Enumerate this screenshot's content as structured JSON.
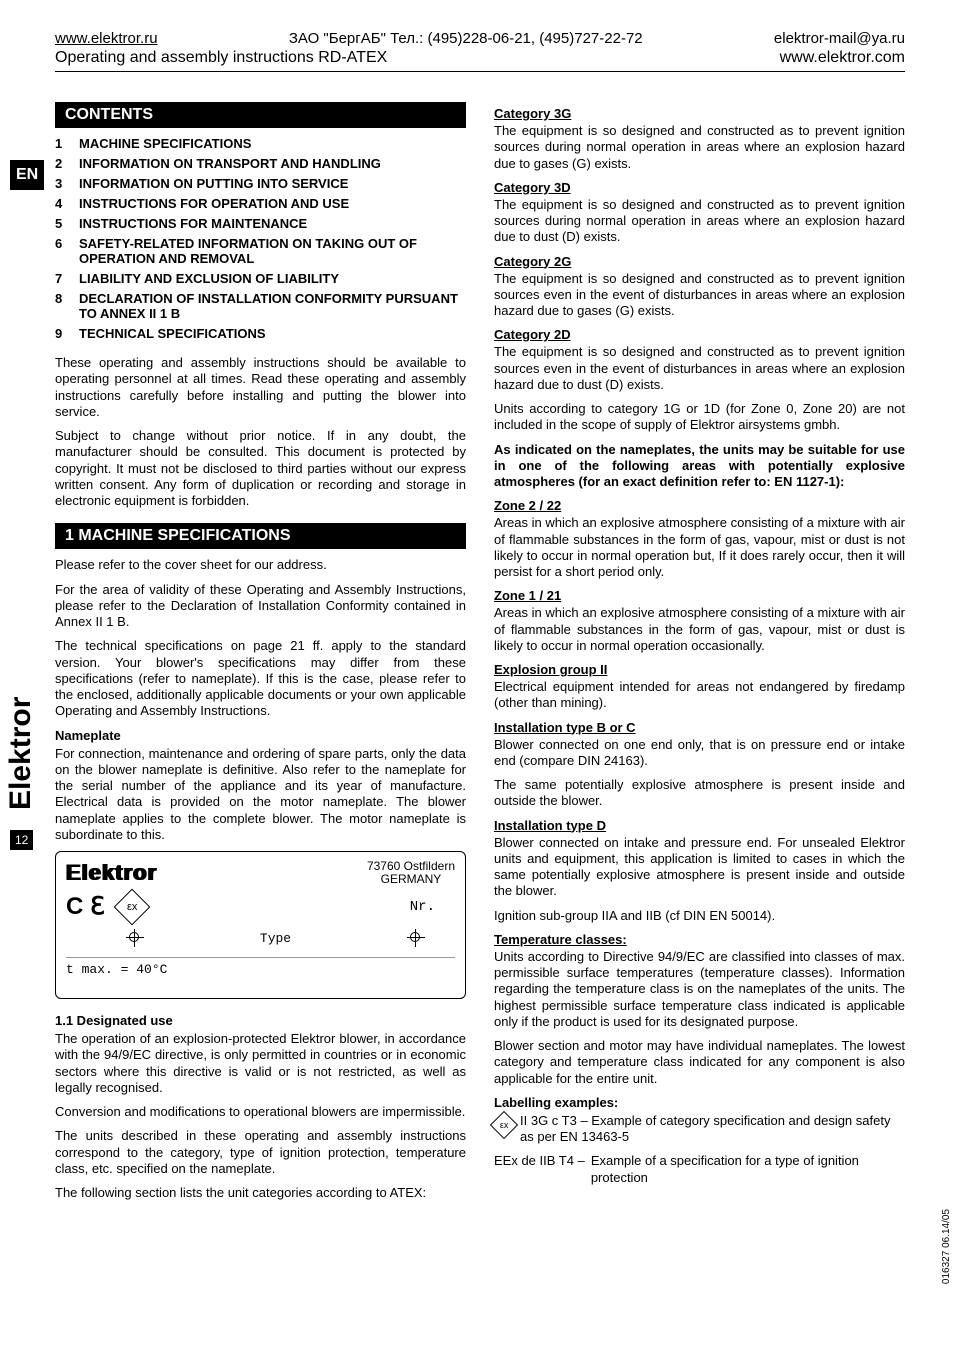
{
  "header": {
    "url_ru": "www.elektror.ru",
    "company_ru": "ЗАО \"БергАБ\"   Тел.: (495)228-06-21, (495)727-22-72",
    "email": "elektror-mail@ya.ru",
    "title": "Operating and assembly instructions RD-ATEX",
    "url_com": "www.elektror.com"
  },
  "side": {
    "lang": "EN",
    "brand": "Elektror",
    "page": "12",
    "docnum": "016327 06.14/05"
  },
  "contents": {
    "heading": "CONTENTS",
    "items": [
      {
        "n": "1",
        "t": "MACHINE SPECIFICATIONS"
      },
      {
        "n": "2",
        "t": "INFORMATION ON TRANSPORT AND HANDLING"
      },
      {
        "n": "3",
        "t": "INFORMATION ON PUTTING INTO SERVICE"
      },
      {
        "n": "4",
        "t": "INSTRUCTIONS FOR OPERATION AND USE"
      },
      {
        "n": "5",
        "t": "INSTRUCTIONS FOR MAINTENANCE"
      },
      {
        "n": "6",
        "t": "SAFETY-RELATED INFORMATION ON TAKING OUT OF OPERATION AND REMOVAL"
      },
      {
        "n": "7",
        "t": "LIABILITY AND EXCLUSION OF LIABILITY"
      },
      {
        "n": "8",
        "t": "DECLARATION OF INSTALLATION CONFORMITY PURSUANT TO ANNEX II 1 B"
      },
      {
        "n": "9",
        "t": "TECHNICAL SPECIFICATIONS"
      }
    ]
  },
  "left": {
    "intro1": "These operating and assembly instructions should be available to operating personnel at all times. Read these operating and assembly instructions carefully before installing and putting the blower into service.",
    "intro2": "Subject to change without prior notice. If in any doubt, the manufacturer should be consulted. This document is protected by copyright. It must not be disclosed to third parties without our express written consent. Any form of duplication or recording and storage in electronic equipment is forbidden.",
    "sec1_heading": "1 MACHINE SPECIFICATIONS",
    "sec1_p1": "Please refer to the cover sheet for our address.",
    "sec1_p2": "For the area of validity of these Operating and Assembly Instructions, please refer to the Declaration of Installation Conformity contained in Annex II 1 B.",
    "sec1_p3": "The technical specifications on page 21 ff. apply to the standard version. Your blower's specifications may differ from these specifications (refer to nameplate). If this is the case, please refer to the enclosed, additionally applicable documents or your own applicable Operating and Assembly Instructions.",
    "np_head": "Nameplate",
    "np_text": "For connection, maintenance and ordering of spare parts, only the data on the blower nameplate is definitive. Also refer to the nameplate for the serial number of the appliance and its year of manufacture. Electrical data is provided on the motor nameplate. The blower nameplate applies to the complete blower. The motor nameplate is subordinate to this.",
    "nameplate": {
      "logo": "Elektror",
      "addr1": "73760 Ostfildern",
      "addr2": "GERMANY",
      "ce": "C ℇ",
      "ex": "εx",
      "nr": "Nr.",
      "type": "Type",
      "tmax": "t max. = 40°C"
    },
    "du_head": "1.1 Designated use",
    "du_p1": "The operation of an explosion-protected Elektror blower, in accordance with the 94/9/EC directive, is only permitted in countries or in economic sectors where this directive is valid or is not restricted, as well as legally recognised.",
    "du_p2": "Conversion and modifications to operational blowers are impermissible.",
    "du_p3": "The units described in these operating and assembly instructions correspond to the category, type of ignition protection, temperature class, etc. specified on the nameplate.",
    "du_p4": "The following section lists the unit categories according to ATEX:"
  },
  "right": {
    "cat3g_h": "Category 3G",
    "cat3g_t": "The equipment is so designed and constructed as to prevent ignition sources during normal operation in areas where an explosion hazard due to gases (G) exists.",
    "cat3d_h": "Category 3D",
    "cat3d_t": "The equipment is so designed and constructed as to prevent ignition sources during normal operation in areas where an explosion hazard due to dust (D) exists.",
    "cat2g_h": "Category 2G",
    "cat2g_t": "The equipment is so designed and constructed as to prevent ignition sources even in the event of disturbances in areas where an explosion hazard due to gases (G) exists.",
    "cat2d_h": "Category 2D",
    "cat2d_t": "The equipment is so designed and constructed as to prevent ignition sources even in the event of disturbances in areas where an explosion hazard due to dust (D) exists.",
    "scope": "Units according to category 1G or 1D (for Zone 0, Zone 20) are not included in the scope of supply of Elektror airsystems gmbh.",
    "indicated": "As indicated on the nameplates, the units may be suitable for use in one of the following areas with potentially explosive atmospheres (for an exact definition refer to: EN 1127-1):",
    "z2_h": "Zone 2 / 22",
    "z2_t": "Areas in which an explosive atmosphere consisting of a mixture with air of flammable substances in the form of gas, vapour, mist or dust is not likely to occur in normal operation but, If it does rarely occur, then it will persist for a short period only.",
    "z1_h": "Zone 1 / 21",
    "z1_t": "Areas in which an explosive atmosphere consisting of a mixture with air of flammable substances in the form of gas, vapour, mist or dust is likely to occur in normal operation occasionally.",
    "eg_h": "Explosion group II",
    "eg_t": "Electrical equipment intended for areas not endangered by firedamp (other than mining).",
    "ibc_h": "Installation type B or C",
    "ibc_t1": "Blower connected on one end only, that is on pressure end or intake end (compare DIN 24163).",
    "ibc_t2": "The same potentially explosive atmosphere is present inside and outside the blower.",
    "id_h": "Installation type D",
    "id_t1": "Blower connected on intake and pressure end. For unsealed Elektror units and equipment, this application is limited to cases in which the same potentially explosive atmosphere is present inside and outside the blower.",
    "id_t2": "Ignition sub-group IIA and IIB (cf DIN EN 50014).",
    "tc_h": "Temperature classes:",
    "tc_t1": "Units according to Directive 94/9/EC are classified into classes of max. permissible surface temperatures (temperature classes). Information regarding the temperature class is on the nameplates of the units. The highest permissible surface temperature class indicated is applicable only if the product is used for its designated purpose.",
    "tc_t2": "Blower section and motor may have individual nameplates. The lowest category and temperature class indicated for any component is also applicable for the entire unit.",
    "lbl_h": "Labelling examples:",
    "lbl_ex": "εx",
    "lbl1": "II 3G c T3 – Example of category specification and design safety as per EN 13463-5",
    "lbl2_h": "EEx de IIB T4 – ",
    "lbl2_t": "Example of a specification for a type of ignition protection"
  }
}
